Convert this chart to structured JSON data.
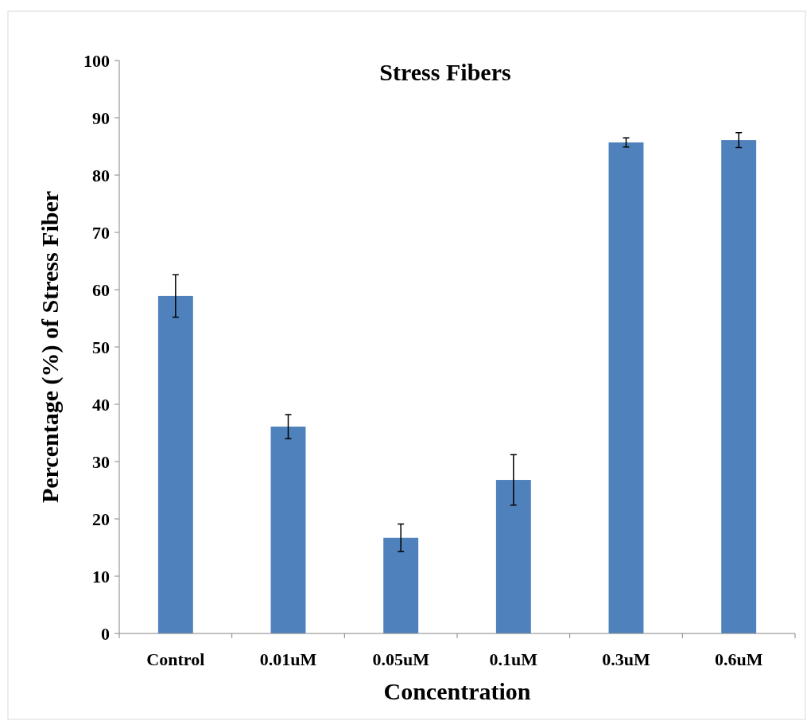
{
  "chart_data": {
    "type": "bar",
    "title": "Stress Fibers",
    "xlabel": "Concentration",
    "ylabel": "Percentage (%) of Stress Fiber",
    "categories": [
      "Control",
      "0.01uM",
      "0.05uM",
      "0.1uM",
      "0.3uM",
      "0.6uM"
    ],
    "values": [
      58.9,
      36.1,
      16.7,
      26.8,
      85.7,
      86.1
    ],
    "errors": [
      3.7,
      2.1,
      2.4,
      4.4,
      0.8,
      1.3
    ],
    "color": "#4f81bd",
    "ylim": [
      0,
      100
    ],
    "yticks": [
      0,
      10,
      20,
      30,
      40,
      50,
      60,
      70,
      80,
      90,
      100
    ],
    "grid": false
  }
}
